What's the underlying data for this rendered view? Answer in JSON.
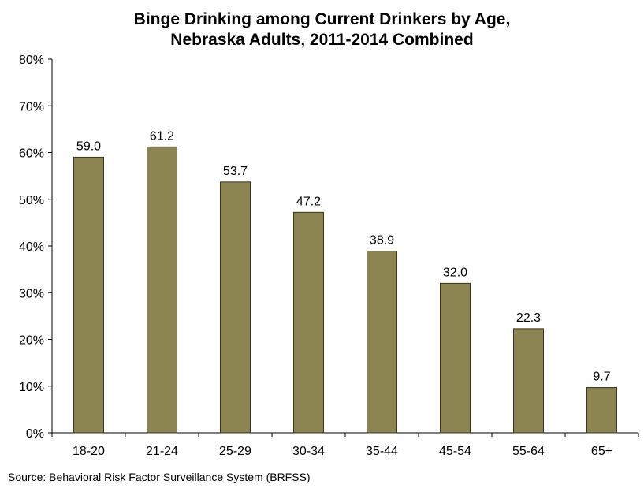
{
  "chart_data": {
    "type": "bar",
    "title": [
      "Binge Drinking among Current Drinkers by Age,",
      "Nebraska Adults, 2011-2014 Combined"
    ],
    "categories": [
      "18-20",
      "21-24",
      "25-29",
      "30-34",
      "35-44",
      "45-54",
      "55-64",
      "65+"
    ],
    "values": [
      59.0,
      61.2,
      53.7,
      47.2,
      38.9,
      32.0,
      22.3,
      9.7
    ],
    "data_labels": [
      "59.0",
      "61.2",
      "53.7",
      "47.2",
      "38.9",
      "32.0",
      "22.3",
      "9.7"
    ],
    "ylim": [
      0,
      80
    ],
    "yticks": [
      "0%",
      "10%",
      "20%",
      "30%",
      "40%",
      "50%",
      "60%",
      "70%",
      "80%"
    ],
    "grid": false,
    "bar_color": "#8c8451",
    "bar_edge_color": "#3a3520"
  },
  "source": "Source: Behavioral Risk Factor Surveillance System (BRFSS)"
}
